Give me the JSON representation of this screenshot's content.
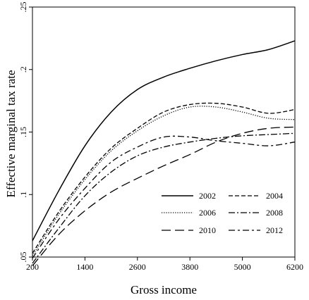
{
  "chart_data": {
    "type": "line",
    "xlabel": "Gross income",
    "ylabel": "Effective marginal tax rate",
    "x_ticks": [
      200,
      1400,
      2600,
      3800,
      5000,
      6200
    ],
    "y_ticks": [
      0.05,
      0.1,
      0.15,
      0.2,
      0.25
    ],
    "y_tick_labels": [
      ".05",
      ".1",
      ".15",
      ".2",
      ".25"
    ],
    "xlim": [
      200,
      6200
    ],
    "ylim": [
      0.05,
      0.25
    ],
    "grid": false,
    "legend_position": "bottom-right",
    "series": [
      {
        "name": "2002",
        "style": "solid",
        "x": [
          200,
          800,
          1400,
          2000,
          2600,
          3200,
          3800,
          4400,
          5000,
          5600,
          6200
        ],
        "y": [
          0.063,
          0.103,
          0.139,
          0.166,
          0.184,
          0.194,
          0.201,
          0.207,
          0.212,
          0.216,
          0.223
        ]
      },
      {
        "name": "2004",
        "style": "short-dash",
        "x": [
          200,
          800,
          1400,
          2000,
          2600,
          3200,
          3800,
          4400,
          5000,
          5600,
          6200
        ],
        "y": [
          0.053,
          0.086,
          0.114,
          0.137,
          0.153,
          0.166,
          0.172,
          0.173,
          0.17,
          0.165,
          0.168
        ]
      },
      {
        "name": "2006",
        "style": "dotted",
        "x": [
          200,
          800,
          1400,
          2000,
          2600,
          3200,
          3800,
          4400,
          5000,
          5600,
          6200
        ],
        "y": [
          0.051,
          0.084,
          0.112,
          0.135,
          0.151,
          0.163,
          0.17,
          0.17,
          0.166,
          0.161,
          0.16
        ]
      },
      {
        "name": "2008",
        "style": "dash-dot",
        "x": [
          200,
          800,
          1400,
          2000,
          2600,
          3200,
          3800,
          4400,
          5000,
          5600,
          6200
        ],
        "y": [
          0.045,
          0.073,
          0.099,
          0.118,
          0.131,
          0.138,
          0.142,
          0.145,
          0.147,
          0.148,
          0.149
        ]
      },
      {
        "name": "2010",
        "style": "long-dash",
        "x": [
          200,
          800,
          1400,
          2000,
          2600,
          3200,
          3800,
          4400,
          5000,
          5600,
          6200
        ],
        "y": [
          0.043,
          0.068,
          0.087,
          0.102,
          0.113,
          0.123,
          0.132,
          0.142,
          0.149,
          0.153,
          0.154
        ]
      },
      {
        "name": "2012",
        "style": "dash-dot-long",
        "x": [
          200,
          800,
          1400,
          2000,
          2600,
          3200,
          3800,
          4400,
          5000,
          5600,
          6200
        ],
        "y": [
          0.049,
          0.08,
          0.105,
          0.126,
          0.138,
          0.146,
          0.146,
          0.143,
          0.141,
          0.139,
          0.142
        ]
      }
    ]
  }
}
